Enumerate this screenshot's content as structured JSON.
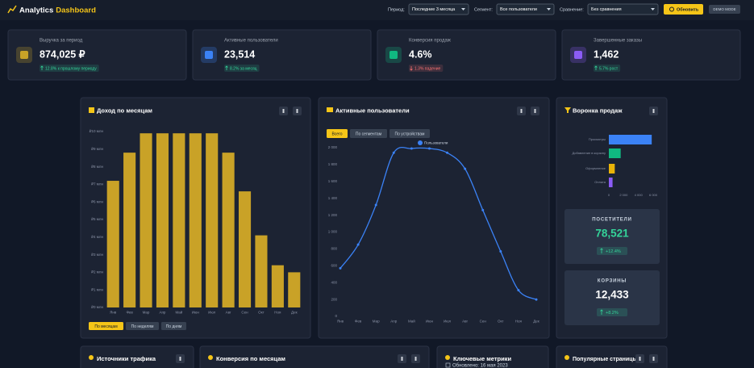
{
  "header": {
    "title": "Analytics",
    "title_accent": "Dashboard",
    "period_label": "Период:",
    "period_value": "Последние 3 месяца",
    "segment_label": "Сегмент:",
    "segment_value": "Все пользователи",
    "compare_label": "Сравнение:",
    "compare_value": "Без сравнения",
    "refresh": "Обновить",
    "badge": "DEMO MODE"
  },
  "kpis": [
    {
      "label": "Выручка за период",
      "value": "874,025 ₽",
      "change": "12.8% к прошлому периоду",
      "trend": "up",
      "color": "#c9a227"
    },
    {
      "label": "Активные пользователи",
      "value": "23,514",
      "change": "8.2% за месяц",
      "trend": "up",
      "color": "#3b82f6"
    },
    {
      "label": "Конверсия продаж",
      "value": "4.6%",
      "change": "1.3% падение",
      "trend": "down",
      "color": "#10b981"
    },
    {
      "label": "Завершенные заказы",
      "value": "1,462",
      "change": "5.7% рост",
      "trend": "up",
      "color": "#8b5cf6"
    }
  ],
  "revenue_chart": {
    "type": "bar",
    "title": "Доход по месяцам",
    "categories": [
      "Янв",
      "Фев",
      "Мар",
      "Апр",
      "Май",
      "Июн",
      "Июл",
      "Авг",
      "Сен",
      "Окт",
      "Ноя",
      "Дек"
    ],
    "values": [
      7.2,
      8.8,
      9.9,
      9.9,
      9.9,
      9.9,
      9.9,
      8.8,
      6.6,
      4.1,
      2.4,
      2.0
    ],
    "color": "#c9a227",
    "ylim": [
      0,
      10
    ],
    "yticks": [
      {
        "value": 0,
        "label": "₽0 млн"
      },
      {
        "value": 1,
        "label": "₽1 млн"
      },
      {
        "value": 2,
        "label": "₽2 млн"
      },
      {
        "value": 3,
        "label": "₽3 млн"
      },
      {
        "value": 4,
        "label": "₽4 млн"
      },
      {
        "value": 5,
        "label": "₽5 млн"
      },
      {
        "value": 6,
        "label": "₽6 млн"
      },
      {
        "value": 7,
        "label": "₽7 млн"
      },
      {
        "value": 8,
        "label": "₽8 млн"
      },
      {
        "value": 9,
        "label": "₽9 млн"
      },
      {
        "value": 10,
        "label": "₽10 млн"
      }
    ],
    "buttons": [
      "По месяцам",
      "По неделям",
      "По дням"
    ]
  },
  "users_chart": {
    "type": "line",
    "title": "Активные пользователи",
    "tabs": [
      "Всего",
      "По сегментам",
      "По устройствам"
    ],
    "categories": [
      "Янв",
      "Фев",
      "Мар",
      "Апр",
      "Май",
      "Июн",
      "Июл",
      "Авг",
      "Сен",
      "Окт",
      "Ноя",
      "Дек"
    ],
    "series": [
      {
        "name": "Пользователи",
        "color": "#3b82f6",
        "values": [
          570,
          850,
          1320,
          1940,
          1990,
          1990,
          1940,
          1750,
          1260,
          770,
          310,
          200
        ]
      }
    ],
    "ylim": [
      0,
      2000
    ],
    "yticks": [
      0,
      200,
      400,
      600,
      800,
      {
        "value": 1000,
        "label": "1 000"
      },
      {
        "value": 1200,
        "label": "1 200"
      },
      {
        "value": 1400,
        "label": "1 400"
      },
      {
        "value": 1600,
        "label": "1 600"
      },
      {
        "value": 1800,
        "label": "1 800"
      },
      {
        "value": 2000,
        "label": "2 000"
      }
    ]
  },
  "funnel_chart": {
    "type": "hbar",
    "title": "Воронка продаж",
    "categories": [
      "Просмотры",
      "Добавление в корзину",
      "Оформление",
      "Оплата"
    ],
    "values": [
      5800,
      1600,
      800,
      500
    ],
    "colors": [
      "#3b82f6",
      "#10b981",
      "#eab308",
      "#8b5cf6"
    ],
    "xlim": [
      0,
      6000
    ],
    "xticks": [
      0,
      {
        "value": 2000,
        "label": "2 000"
      },
      {
        "value": 4000,
        "label": "4 000"
      },
      {
        "value": 6000,
        "label": "6 000"
      }
    ]
  },
  "stats": [
    {
      "label": "ПОСЕТИТЕЛИ",
      "value": "78,521",
      "change": "+12.4%",
      "color": "#34d399"
    },
    {
      "label": "КОРЗИНЫ",
      "value": "12,433",
      "change": "+8.2%",
      "color": "#ffffff"
    }
  ],
  "bottom_cards": [
    {
      "title": "Источники трафика"
    },
    {
      "title": "Конверсия по месяцам"
    },
    {
      "title": "Ключевые метрики",
      "subtitle": "Обновлено: 16 мая 2023"
    },
    {
      "title": "Популярные страницы"
    }
  ]
}
